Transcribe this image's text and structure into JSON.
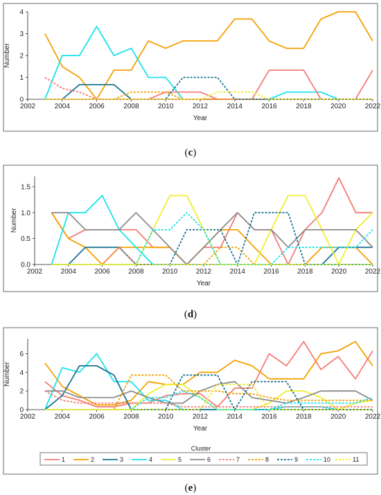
{
  "colors": {
    "1": "#f47c74",
    "2": "#f5a000",
    "3": "#1a7391",
    "4": "#19e3ec",
    "5": "#f1ee2e",
    "6": "#8c8c8c",
    "7": "#f47c74",
    "8": "#f5a000",
    "9": "#1a7391",
    "10": "#19e3ec",
    "11": "#f1ee2e"
  },
  "legend": {
    "title": "Cluster",
    "items": [
      {
        "key": "1",
        "label": "1",
        "dashed": false
      },
      {
        "key": "2",
        "label": "2",
        "dashed": false
      },
      {
        "key": "3",
        "label": "3",
        "dashed": false
      },
      {
        "key": "4",
        "label": "4",
        "dashed": false
      },
      {
        "key": "5",
        "label": "5",
        "dashed": false
      },
      {
        "key": "6",
        "label": "6",
        "dashed": false
      },
      {
        "key": "7",
        "label": "7",
        "dashed": true
      },
      {
        "key": "8",
        "label": "8",
        "dashed": true
      },
      {
        "key": "9",
        "label": "9",
        "dashed": true
      },
      {
        "key": "10",
        "label": "10",
        "dashed": true
      },
      {
        "key": "11",
        "label": "11",
        "dashed": true
      }
    ]
  },
  "chart_data": [
    {
      "panel": "(c)",
      "type": "line",
      "xlabel": "Year",
      "ylabel": "Number",
      "xlim": [
        2002,
        2022
      ],
      "ylim": [
        0,
        4
      ],
      "xticks": [
        2002,
        2004,
        2006,
        2008,
        2010,
        2012,
        2014,
        2016,
        2018,
        2020,
        2022
      ],
      "yticks": [
        0,
        1,
        2,
        3,
        4
      ],
      "ytick_labels": [
        "0",
        "1",
        "2",
        "3",
        "4"
      ],
      "x": [
        2003,
        2004,
        2005,
        2006,
        2007,
        2008,
        2009,
        2010,
        2011,
        2012,
        2013,
        2014,
        2015,
        2016,
        2017,
        2018,
        2019,
        2020,
        2021,
        2022
      ],
      "series": [
        {
          "key": "2",
          "values": [
            3,
            1.5,
            1,
            0,
            1.33,
            1.33,
            2.67,
            2.33,
            2.67,
            2.67,
            2.67,
            3.67,
            3.67,
            2.67,
            2.33,
            2.33,
            3.67,
            4,
            4,
            2.67
          ]
        },
        {
          "key": "4",
          "values": [
            0,
            2,
            2,
            3.33,
            2,
            2.33,
            1,
            1,
            0,
            0,
            0,
            0,
            0,
            0,
            0.33,
            0.33,
            0.33,
            0,
            0,
            0
          ]
        },
        {
          "key": "3",
          "values": [
            0,
            0,
            0.67,
            0.67,
            0.67,
            0,
            0,
            0,
            0,
            0,
            0,
            0,
            0,
            0,
            0,
            0,
            0,
            0,
            0,
            0
          ]
        },
        {
          "key": "1",
          "values": [
            0,
            0,
            0,
            0,
            0,
            0,
            0,
            0.33,
            0.33,
            0.33,
            0,
            0,
            0,
            1.33,
            1.33,
            1.33,
            0,
            0,
            0,
            1.33
          ]
        },
        {
          "key": "7",
          "values": [
            1,
            0.5,
            0.33,
            0,
            0,
            0,
            0,
            0,
            0,
            0,
            0,
            0,
            0,
            0,
            0,
            0,
            0,
            0,
            0,
            0
          ]
        },
        {
          "key": "8",
          "values": [
            0,
            0,
            0,
            0,
            0,
            0.33,
            0.33,
            0.33,
            0,
            0,
            0,
            0,
            0,
            0,
            0,
            0,
            0,
            0,
            0,
            0
          ]
        },
        {
          "key": "9",
          "values": [
            0,
            0,
            0,
            0,
            0,
            0,
            0,
            0,
            1,
            1,
            1,
            0,
            0,
            0,
            0,
            0,
            0,
            0,
            0,
            0
          ]
        },
        {
          "key": "11",
          "values": [
            0,
            0,
            0,
            0,
            0,
            0,
            0,
            0,
            0,
            0,
            0.33,
            0.33,
            0.33,
            0,
            0,
            0,
            0,
            0,
            0,
            0
          ]
        }
      ]
    },
    {
      "panel": "(d)",
      "type": "line",
      "xlabel": "Year",
      "ylabel": "Number",
      "xlim": [
        2002,
        2022
      ],
      "ylim": [
        0,
        1.7
      ],
      "xticks": [
        2002,
        2004,
        2006,
        2008,
        2010,
        2012,
        2014,
        2016,
        2018,
        2020,
        2022
      ],
      "yticks": [
        0,
        0.5,
        1.0,
        1.5
      ],
      "ytick_labels": [
        "0.0",
        "0.5",
        "1.0",
        "1.5"
      ],
      "x": [
        2003,
        2004,
        2005,
        2006,
        2007,
        2008,
        2009,
        2010,
        2011,
        2012,
        2013,
        2014,
        2015,
        2016,
        2017,
        2018,
        2019,
        2020,
        2021,
        2022
      ],
      "series": [
        {
          "key": "1",
          "values": [
            1,
            0.5,
            0.67,
            0.67,
            0.67,
            0.67,
            0.33,
            0.33,
            0,
            0.33,
            0.33,
            1,
            0.67,
            0.67,
            0,
            0.67,
            1,
            1.67,
            1,
            1
          ]
        },
        {
          "key": "2",
          "values": [
            1,
            0.5,
            0.33,
            0,
            0.33,
            0.33,
            0.33,
            0.33,
            0,
            0.33,
            0.67,
            0.67,
            0.33,
            0,
            0,
            0,
            0.33,
            0.33,
            0.33,
            0
          ]
        },
        {
          "key": "3",
          "values": [
            0,
            0,
            0.33,
            0.33,
            0.33,
            0,
            0,
            0,
            0,
            0,
            0,
            0,
            0,
            0,
            0,
            0,
            0,
            0.33,
            0.33,
            0.33
          ]
        },
        {
          "key": "4",
          "values": [
            0,
            1,
            1,
            1.33,
            0.67,
            0.33,
            0,
            0,
            0,
            0,
            0,
            0,
            0,
            0,
            0,
            0,
            0,
            0,
            0,
            0
          ]
        },
        {
          "key": "5",
          "values": [
            0,
            0,
            0,
            0,
            0,
            0,
            0.67,
            1.33,
            1.33,
            0.67,
            0,
            0,
            0,
            0.67,
            1.33,
            1.33,
            0.67,
            0,
            0.67,
            1
          ]
        },
        {
          "key": "6",
          "values": [
            1,
            1,
            0.67,
            0.67,
            0.67,
            1,
            0.67,
            0.33,
            0,
            0.33,
            0.67,
            1,
            0.67,
            0.67,
            0.33,
            0.67,
            0.67,
            0.67,
            0.67,
            0.33
          ]
        },
        {
          "key": "7",
          "values": [
            0,
            0,
            0,
            0,
            0.33,
            0,
            0,
            0,
            0,
            0,
            0,
            0,
            0,
            0,
            0,
            0,
            0,
            0,
            0,
            0
          ]
        },
        {
          "key": "8",
          "values": [
            0,
            0,
            0,
            0,
            0,
            0,
            0,
            0,
            0,
            0,
            0.33,
            0.33,
            0,
            0,
            0,
            0,
            0,
            0,
            0,
            0
          ]
        },
        {
          "key": "9",
          "values": [
            0,
            0,
            0,
            0,
            0,
            0,
            0,
            0,
            0.67,
            0.67,
            0.67,
            0,
            1,
            1,
            1,
            0,
            0,
            0,
            0,
            0
          ]
        },
        {
          "key": "10",
          "values": [
            0,
            0,
            0,
            0,
            0,
            0,
            0.67,
            0.67,
            1,
            0.67,
            0,
            0,
            0,
            0,
            0.33,
            0.33,
            0.33,
            0.33,
            0.33,
            0.67
          ]
        },
        {
          "key": "11",
          "values": [
            0,
            0,
            0,
            0,
            0,
            0,
            0,
            0,
            0,
            0,
            0,
            0,
            0,
            0,
            0,
            0,
            0,
            0,
            0,
            0
          ]
        }
      ]
    },
    {
      "panel": "(e)",
      "type": "line",
      "xlabel": "Year",
      "ylabel": "Number",
      "xlim": [
        2002,
        2022
      ],
      "ylim": [
        0,
        7.6
      ],
      "xticks": [
        2002,
        2004,
        2006,
        2008,
        2010,
        2012,
        2014,
        2016,
        2018,
        2020,
        2022
      ],
      "yticks": [
        0,
        2,
        4,
        6
      ],
      "ytick_labels": [
        "0",
        "2",
        "4",
        "6"
      ],
      "x": [
        2003,
        2004,
        2005,
        2006,
        2007,
        2008,
        2009,
        2010,
        2011,
        2012,
        2013,
        2014,
        2015,
        2016,
        2017,
        2018,
        2019,
        2020,
        2021,
        2022
      ],
      "series": [
        {
          "key": "2",
          "values": [
            5,
            2.5,
            1.5,
            0.5,
            0.5,
            1,
            3,
            2.7,
            2.7,
            4,
            4,
            5.3,
            4.7,
            3.3,
            3.3,
            3.3,
            6,
            6.3,
            7.3,
            4.7
          ]
        },
        {
          "key": "1",
          "values": [
            3,
            1.5,
            1,
            0.3,
            0.3,
            0.7,
            0.7,
            1.5,
            1.7,
            1.7,
            0.3,
            2.3,
            2.3,
            6,
            4.7,
            7.3,
            4.3,
            5.7,
            3.3,
            6.3
          ]
        },
        {
          "key": "4",
          "values": [
            0,
            4.5,
            4,
            6,
            3,
            3,
            1,
            1,
            0,
            0,
            0,
            0,
            0,
            0,
            0.3,
            0.3,
            0.3,
            0,
            0,
            0
          ]
        },
        {
          "key": "3",
          "values": [
            0,
            1.5,
            4.7,
            4.7,
            3.7,
            0,
            0,
            0,
            0,
            0,
            0,
            0,
            0,
            0,
            0,
            0,
            0,
            0,
            0,
            0
          ]
        },
        {
          "key": "5",
          "values": [
            0,
            0,
            0,
            0,
            0,
            0,
            1.7,
            2.7,
            2.7,
            1.3,
            0,
            0,
            0,
            0.7,
            2,
            2,
            1.3,
            0,
            0.7,
            1
          ]
        },
        {
          "key": "6",
          "values": [
            2,
            2,
            1.3,
            1.3,
            1.3,
            2,
            1.3,
            0.7,
            0.7,
            2,
            2.7,
            3,
            1.3,
            1,
            0.7,
            1.3,
            2,
            2,
            2,
            1
          ]
        },
        {
          "key": "7",
          "values": [
            2,
            1,
            0.7,
            0.7,
            0.7,
            0.7,
            0.7,
            0.7,
            0.3,
            0.3,
            0.3,
            0.3,
            0.3,
            0.3,
            0.3,
            0.3,
            0.3,
            0.3,
            0.3,
            0.3
          ]
        },
        {
          "key": "8",
          "values": [
            0,
            0,
            0,
            0,
            0,
            3.7,
            3.7,
            3.7,
            2,
            2,
            2,
            1.7,
            1.7,
            1.3,
            1,
            1,
            1,
            1,
            1,
            1
          ]
        },
        {
          "key": "9",
          "values": [
            0,
            0,
            0,
            0,
            0,
            0,
            0,
            0,
            3.7,
            3.7,
            3.7,
            0,
            3,
            3,
            3,
            0,
            0,
            0,
            0,
            0
          ]
        },
        {
          "key": "10",
          "values": [
            0,
            0,
            0,
            0,
            0,
            0,
            1.3,
            1.3,
            2,
            1.3,
            0,
            0,
            0,
            0,
            0.7,
            0.7,
            0.7,
            0.7,
            0.7,
            1.3
          ]
        },
        {
          "key": "11",
          "values": [
            0,
            0,
            0,
            0,
            0,
            0,
            0,
            0,
            0,
            0,
            2.7,
            2.7,
            2.7,
            0,
            0,
            0,
            0,
            0,
            0,
            0
          ]
        }
      ]
    }
  ]
}
